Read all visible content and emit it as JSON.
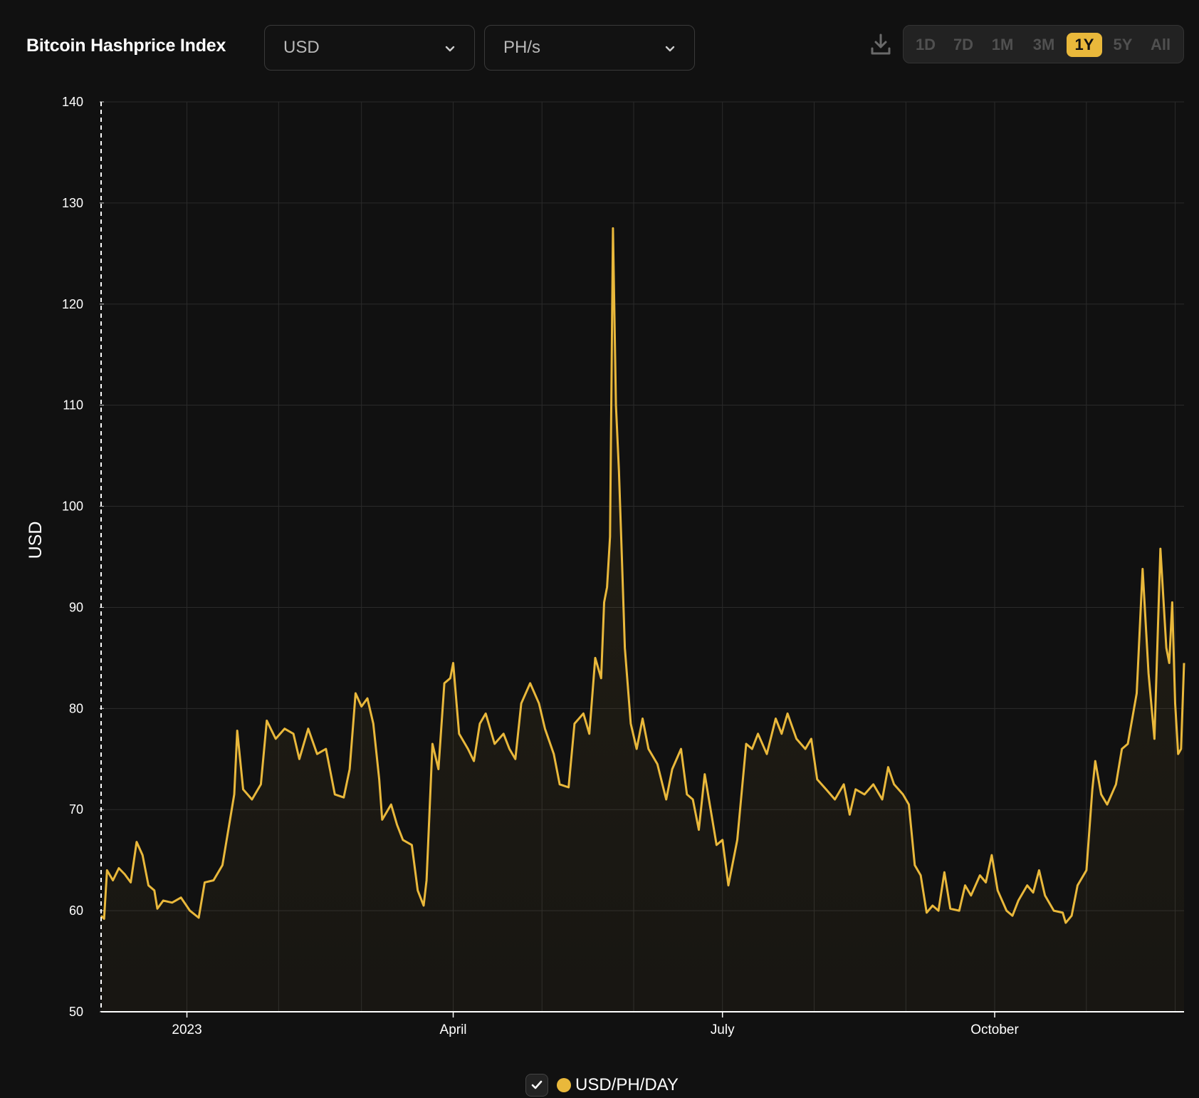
{
  "header": {
    "title": "Bitcoin Hashprice Index",
    "currency_select": {
      "value": "USD"
    },
    "unit_select": {
      "value": "PH/s"
    },
    "ranges": [
      "1D",
      "7D",
      "1M",
      "3M",
      "1Y",
      "5Y",
      "All"
    ],
    "active_range": "1Y"
  },
  "legend": {
    "label": "USD/PH/DAY",
    "checked": true,
    "color": "#e9b83b"
  },
  "chart_data": {
    "type": "area",
    "title": "",
    "xlabel": "",
    "ylabel": "USD",
    "ylim": [
      50,
      140
    ],
    "xlim": [
      "2022-12-03",
      "2023-12-04"
    ],
    "y_ticks": [
      50,
      60,
      70,
      80,
      90,
      100,
      110,
      120,
      130,
      140
    ],
    "x_ticks": [
      {
        "label": "2023",
        "date": "2023-01-01"
      },
      {
        "label": "April",
        "date": "2023-04-01"
      },
      {
        "label": "July",
        "date": "2023-07-01"
      },
      {
        "label": "October",
        "date": "2023-10-01"
      }
    ],
    "grid": true,
    "legend_position": "bottom-center",
    "series": [
      {
        "name": "USD/PH/DAY",
        "color": "#e9b83b",
        "points": [
          [
            "2022-12-03",
            59.5
          ],
          [
            "2022-12-04",
            59.2
          ],
          [
            "2022-12-05",
            64.0
          ],
          [
            "2022-12-07",
            63.0
          ],
          [
            "2022-12-09",
            64.2
          ],
          [
            "2022-12-11",
            63.6
          ],
          [
            "2022-12-13",
            62.8
          ],
          [
            "2022-12-15",
            66.8
          ],
          [
            "2022-12-17",
            65.5
          ],
          [
            "2022-12-19",
            62.5
          ],
          [
            "2022-12-21",
            62.0
          ],
          [
            "2022-12-22",
            60.2
          ],
          [
            "2022-12-24",
            61.0
          ],
          [
            "2022-12-27",
            60.8
          ],
          [
            "2022-12-30",
            61.3
          ],
          [
            "2023-01-02",
            60.0
          ],
          [
            "2023-01-05",
            59.3
          ],
          [
            "2023-01-07",
            62.8
          ],
          [
            "2023-01-10",
            63.0
          ],
          [
            "2023-01-13",
            64.5
          ],
          [
            "2023-01-15",
            68.0
          ],
          [
            "2023-01-17",
            71.5
          ],
          [
            "2023-01-18",
            77.8
          ],
          [
            "2023-01-20",
            72.0
          ],
          [
            "2023-01-23",
            71.0
          ],
          [
            "2023-01-26",
            72.5
          ],
          [
            "2023-01-28",
            78.8
          ],
          [
            "2023-01-31",
            77.0
          ],
          [
            "2023-02-03",
            78.0
          ],
          [
            "2023-02-06",
            77.5
          ],
          [
            "2023-02-08",
            75.0
          ],
          [
            "2023-02-11",
            78.0
          ],
          [
            "2023-02-14",
            75.5
          ],
          [
            "2023-02-17",
            76.0
          ],
          [
            "2023-02-20",
            71.5
          ],
          [
            "2023-02-23",
            71.2
          ],
          [
            "2023-02-25",
            74.0
          ],
          [
            "2023-02-27",
            81.5
          ],
          [
            "2023-03-01",
            80.2
          ],
          [
            "2023-03-03",
            81.0
          ],
          [
            "2023-03-05",
            78.5
          ],
          [
            "2023-03-07",
            73.0
          ],
          [
            "2023-03-08",
            69.0
          ],
          [
            "2023-03-11",
            70.5
          ],
          [
            "2023-03-13",
            68.5
          ],
          [
            "2023-03-15",
            67.0
          ],
          [
            "2023-03-18",
            66.5
          ],
          [
            "2023-03-20",
            62.0
          ],
          [
            "2023-03-22",
            60.5
          ],
          [
            "2023-03-23",
            63.0
          ],
          [
            "2023-03-25",
            76.5
          ],
          [
            "2023-03-27",
            74.0
          ],
          [
            "2023-03-29",
            82.5
          ],
          [
            "2023-03-31",
            83.0
          ],
          [
            "2023-04-01",
            84.5
          ],
          [
            "2023-04-03",
            77.5
          ],
          [
            "2023-04-06",
            76.0
          ],
          [
            "2023-04-08",
            74.8
          ],
          [
            "2023-04-10",
            78.5
          ],
          [
            "2023-04-12",
            79.5
          ],
          [
            "2023-04-15",
            76.5
          ],
          [
            "2023-04-18",
            77.5
          ],
          [
            "2023-04-20",
            76.0
          ],
          [
            "2023-04-22",
            75.0
          ],
          [
            "2023-04-24",
            80.5
          ],
          [
            "2023-04-27",
            82.5
          ],
          [
            "2023-04-30",
            80.5
          ],
          [
            "2023-05-02",
            78.0
          ],
          [
            "2023-05-05",
            75.5
          ],
          [
            "2023-05-07",
            72.5
          ],
          [
            "2023-05-10",
            72.2
          ],
          [
            "2023-05-12",
            78.5
          ],
          [
            "2023-05-15",
            79.5
          ],
          [
            "2023-05-17",
            77.5
          ],
          [
            "2023-05-19",
            85.0
          ],
          [
            "2023-05-21",
            83.0
          ],
          [
            "2023-05-22",
            90.5
          ],
          [
            "2023-05-23",
            92.0
          ],
          [
            "2023-05-24",
            97.0
          ],
          [
            "2023-05-25",
            127.5
          ],
          [
            "2023-05-26",
            110.0
          ],
          [
            "2023-05-27",
            103.5
          ],
          [
            "2023-05-28",
            95.0
          ],
          [
            "2023-05-29",
            86.0
          ],
          [
            "2023-05-31",
            78.5
          ],
          [
            "2023-06-02",
            76.0
          ],
          [
            "2023-06-04",
            79.0
          ],
          [
            "2023-06-06",
            76.0
          ],
          [
            "2023-06-09",
            74.5
          ],
          [
            "2023-06-12",
            71.0
          ],
          [
            "2023-06-14",
            74.0
          ],
          [
            "2023-06-17",
            76.0
          ],
          [
            "2023-06-19",
            71.5
          ],
          [
            "2023-06-21",
            71.0
          ],
          [
            "2023-06-23",
            68.0
          ],
          [
            "2023-06-25",
            73.5
          ],
          [
            "2023-06-27",
            70.0
          ],
          [
            "2023-06-29",
            66.5
          ],
          [
            "2023-07-01",
            67.0
          ],
          [
            "2023-07-03",
            62.5
          ],
          [
            "2023-07-06",
            67.0
          ],
          [
            "2023-07-09",
            76.5
          ],
          [
            "2023-07-11",
            76.0
          ],
          [
            "2023-07-13",
            77.5
          ],
          [
            "2023-07-16",
            75.5
          ],
          [
            "2023-07-19",
            79.0
          ],
          [
            "2023-07-21",
            77.5
          ],
          [
            "2023-07-23",
            79.5
          ],
          [
            "2023-07-26",
            77.0
          ],
          [
            "2023-07-29",
            76.0
          ],
          [
            "2023-07-31",
            77.0
          ],
          [
            "2023-08-02",
            73.0
          ],
          [
            "2023-08-05",
            72.0
          ],
          [
            "2023-08-08",
            71.0
          ],
          [
            "2023-08-11",
            72.5
          ],
          [
            "2023-08-13",
            69.5
          ],
          [
            "2023-08-15",
            72.0
          ],
          [
            "2023-08-18",
            71.5
          ],
          [
            "2023-08-21",
            72.5
          ],
          [
            "2023-08-24",
            71.0
          ],
          [
            "2023-08-26",
            74.2
          ],
          [
            "2023-08-28",
            72.5
          ],
          [
            "2023-08-31",
            71.5
          ],
          [
            "2023-09-02",
            70.5
          ],
          [
            "2023-09-04",
            64.5
          ],
          [
            "2023-09-06",
            63.5
          ],
          [
            "2023-09-08",
            59.8
          ],
          [
            "2023-09-10",
            60.5
          ],
          [
            "2023-09-12",
            60.0
          ],
          [
            "2023-09-14",
            63.8
          ],
          [
            "2023-09-16",
            60.2
          ],
          [
            "2023-09-19",
            60.0
          ],
          [
            "2023-09-21",
            62.5
          ],
          [
            "2023-09-23",
            61.5
          ],
          [
            "2023-09-26",
            63.5
          ],
          [
            "2023-09-28",
            62.8
          ],
          [
            "2023-09-30",
            65.5
          ],
          [
            "2023-10-02",
            62.0
          ],
          [
            "2023-10-05",
            60.0
          ],
          [
            "2023-10-07",
            59.5
          ],
          [
            "2023-10-09",
            61.0
          ],
          [
            "2023-10-12",
            62.5
          ],
          [
            "2023-10-14",
            61.8
          ],
          [
            "2023-10-16",
            64.0
          ],
          [
            "2023-10-18",
            61.5
          ],
          [
            "2023-10-21",
            60.0
          ],
          [
            "2023-10-24",
            59.8
          ],
          [
            "2023-10-25",
            58.8
          ],
          [
            "2023-10-27",
            59.5
          ],
          [
            "2023-10-29",
            62.5
          ],
          [
            "2023-11-01",
            64.0
          ],
          [
            "2023-11-03",
            72.0
          ],
          [
            "2023-11-04",
            74.8
          ],
          [
            "2023-11-06",
            71.5
          ],
          [
            "2023-11-08",
            70.5
          ],
          [
            "2023-11-11",
            72.5
          ],
          [
            "2023-11-13",
            76.0
          ],
          [
            "2023-11-15",
            76.5
          ],
          [
            "2023-11-18",
            81.5
          ],
          [
            "2023-11-20",
            93.8
          ],
          [
            "2023-11-22",
            83.5
          ],
          [
            "2023-11-24",
            77.0
          ],
          [
            "2023-11-26",
            95.8
          ],
          [
            "2023-11-28",
            86.0
          ],
          [
            "2023-11-29",
            84.5
          ],
          [
            "2023-11-30",
            90.5
          ],
          [
            "2023-12-01",
            80.5
          ],
          [
            "2023-12-02",
            75.5
          ],
          [
            "2023-12-03",
            76.0
          ],
          [
            "2023-12-04",
            84.5
          ]
        ]
      }
    ]
  }
}
